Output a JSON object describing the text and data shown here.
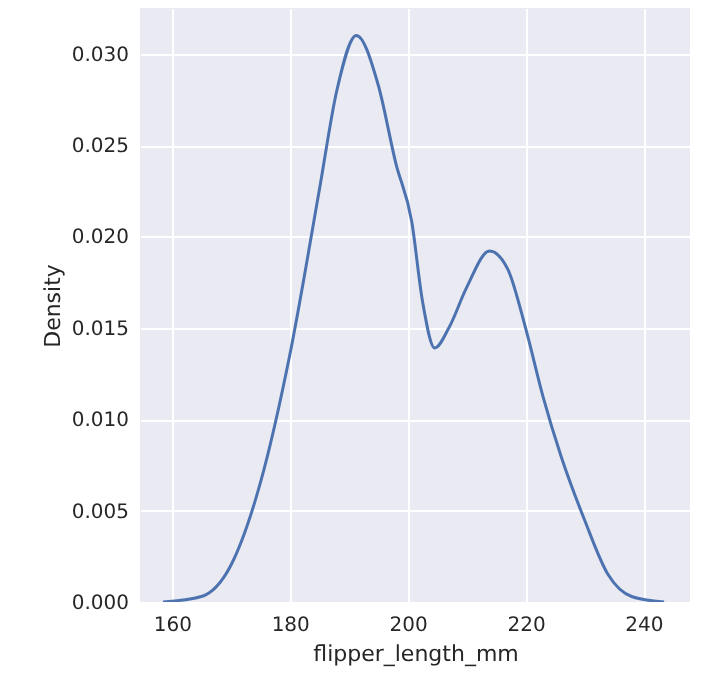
{
  "chart_data": {
    "type": "line",
    "xlabel": "flipper_length_mm",
    "ylabel": "Density",
    "x": [
      158.5,
      165,
      170,
      175,
      180,
      185,
      188,
      191.3,
      195,
      198,
      200.7,
      202.5,
      204.6,
      207,
      210,
      213.9,
      217,
      220,
      223,
      226,
      230,
      234,
      238,
      243.5
    ],
    "series": [
      {
        "color": "#4c72b0",
        "values": [
          0,
          0.0003,
          0.002,
          0.0065,
          0.0135,
          0.0225,
          0.028,
          0.031,
          0.0283,
          0.024,
          0.0208,
          0.0165,
          0.0139,
          0.015,
          0.0172,
          0.0192,
          0.0182,
          0.015,
          0.0112,
          0.008,
          0.0045,
          0.0015,
          0.0003,
          0
        ]
      }
    ],
    "xlim": [
      154.6,
      247.9
    ],
    "ylim": [
      0,
      0.0325
    ],
    "xticks": [
      160,
      180,
      200,
      220,
      240
    ],
    "yticks": [
      {
        "value": 0,
        "label": "0.000"
      },
      {
        "value": 0.005,
        "label": "0.005"
      },
      {
        "value": 0.01,
        "label": "0.010"
      },
      {
        "value": 0.015,
        "label": "0.015"
      },
      {
        "value": 0.02,
        "label": "0.020"
      },
      {
        "value": 0.025,
        "label": "0.025"
      },
      {
        "value": 0.03,
        "label": "0.030"
      }
    ],
    "grid": true
  }
}
